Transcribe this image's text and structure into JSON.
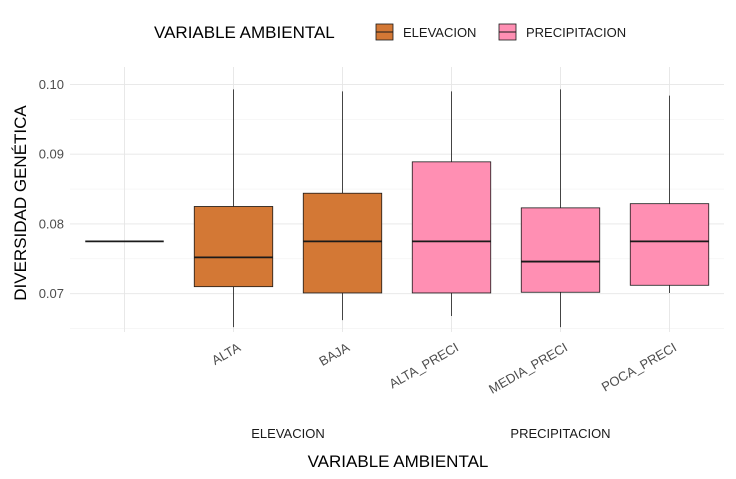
{
  "chart_data": {
    "type": "box",
    "xlabel": "VARIABLE AMBIENTAL",
    "ylabel": "DIVERSIDAD GENÉTICA",
    "ylim": [
      0.0645,
      0.1025
    ],
    "yticks": [
      0.07,
      0.08,
      0.09,
      0.1
    ],
    "ytick_labels": [
      "0.07",
      "0.08",
      "0.09",
      "0.10"
    ],
    "grid": true,
    "legend": {
      "title": "VARIABLE AMBIENTAL",
      "position": "top",
      "entries": [
        {
          "label": "ELEVACION",
          "color": "#D37835"
        },
        {
          "label": "PRECIPITACION",
          "color": "#FF8FB3"
        }
      ]
    },
    "categories": [
      "",
      "ALTA",
      "BAJA",
      "ALTA_PRECI",
      "MEDIA_PRECI",
      "POCA_PRECI"
    ],
    "groups": [
      {
        "label": "ELEVACION",
        "categories": [
          "ALTA",
          "BAJA"
        ]
      },
      {
        "label": "PRECIPITACION",
        "categories": [
          "ALTA_PRECI",
          "MEDIA_PRECI",
          "POCA_PRECI"
        ]
      }
    ],
    "boxes": [
      {
        "category": "",
        "min": 0.0775,
        "q1": 0.0775,
        "median": 0.0775,
        "q3": 0.0775,
        "max": 0.0775,
        "fill": "none"
      },
      {
        "category": "ALTA",
        "min": 0.0652,
        "q1": 0.071,
        "median": 0.0752,
        "q3": 0.0825,
        "max": 0.0993,
        "fill": "#D37835"
      },
      {
        "category": "BAJA",
        "min": 0.0662,
        "q1": 0.0701,
        "median": 0.0775,
        "q3": 0.0844,
        "max": 0.099,
        "fill": "#D37835"
      },
      {
        "category": "ALTA_PRECI",
        "min": 0.0668,
        "q1": 0.0701,
        "median": 0.0775,
        "q3": 0.0889,
        "max": 0.099,
        "fill": "#FF8FB3"
      },
      {
        "category": "MEDIA_PRECI",
        "min": 0.0652,
        "q1": 0.0702,
        "median": 0.0746,
        "q3": 0.0823,
        "max": 0.0993,
        "fill": "#FF8FB3"
      },
      {
        "category": "POCA_PRECI",
        "min": 0.0701,
        "q1": 0.0712,
        "median": 0.0775,
        "q3": 0.0829,
        "max": 0.0984,
        "fill": "#FF8FB3"
      }
    ]
  }
}
